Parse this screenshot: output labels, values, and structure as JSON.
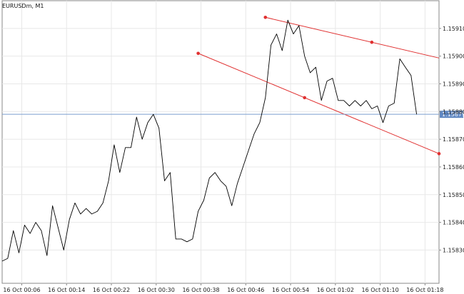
{
  "header": {
    "title": "EURUSDm, M1"
  },
  "colors": {
    "price_line": "#000000",
    "channel": "#e03030",
    "horizontal_line": "#7a9ecf",
    "price_label_bg": "#5f87c2",
    "grid": "#e8e8e8",
    "axis": "#888888"
  },
  "chart_data": {
    "type": "line",
    "title": "EURUSDm, M1",
    "grid": true,
    "y_axis_position": "right",
    "ylim": [
      1.15818,
      1.1592
    ],
    "y_ticks": [
      "1.15830",
      "1.15840",
      "1.15850",
      "1.15860",
      "1.15870",
      "1.15880",
      "1.15890",
      "1.15900",
      "1.15910"
    ],
    "x_tick_labels": [
      "16 Oct 00:06",
      "16 Oct 00:14",
      "16 Oct 00:22",
      "16 Oct 00:30",
      "16 Oct 00:38",
      "16 Oct 00:46",
      "16 Oct 00:54",
      "16 Oct 01:02",
      "16 Oct 01:10",
      "16 Oct 01:18"
    ],
    "x_tick_minutes": [
      6,
      14,
      22,
      30,
      38,
      46,
      54,
      62,
      70,
      78
    ],
    "xlim_minutes": [
      2.5,
      80.5
    ],
    "series": [
      {
        "x_minutes": [
          2.5,
          3.5,
          4.5,
          5.5,
          6.5,
          7.5,
          8.5,
          9.5,
          10.5,
          11.5,
          12.5,
          13.5,
          14.5,
          15.5,
          16.5,
          17.5,
          18.5,
          19.5,
          20.5,
          21.5,
          22.5,
          23.5,
          24.5,
          25.5,
          26.5,
          27.5,
          28.5,
          29.5,
          30.5,
          31.5,
          32.5,
          33.5,
          34.5,
          35.5,
          36.5,
          37.5,
          38.5,
          39.5,
          40.5,
          41.5,
          42.5,
          43.5,
          44.5,
          45.5,
          46.5,
          47.5,
          48.5,
          49.5,
          50.5,
          51.5,
          52.5,
          53.5,
          54.5,
          55.5,
          56.5,
          57.5,
          58.5,
          59.5,
          60.5,
          61.5,
          62.5,
          63.5,
          64.5,
          65.5,
          66.5,
          67.5,
          68.5,
          69.5,
          70.5,
          71.5,
          72.5,
          73.5,
          74.5,
          75.5,
          76.5
        ],
        "values": [
          1.15826,
          1.15827,
          1.15837,
          1.15829,
          1.15839,
          1.15836,
          1.1584,
          1.15837,
          1.15828,
          1.15846,
          1.15838,
          1.1583,
          1.15841,
          1.15847,
          1.15843,
          1.15845,
          1.15843,
          1.15844,
          1.15847,
          1.15855,
          1.15868,
          1.15858,
          1.15867,
          1.15867,
          1.15878,
          1.1587,
          1.15876,
          1.15879,
          1.15874,
          1.15855,
          1.15858,
          1.15834,
          1.15834,
          1.15833,
          1.15834,
          1.15844,
          1.15848,
          1.15856,
          1.15858,
          1.15855,
          1.15853,
          1.15846,
          1.15854,
          1.1586,
          1.15866,
          1.15872,
          1.15876,
          1.15885,
          1.15904,
          1.15908,
          1.15902,
          1.15913,
          1.15908,
          1.15911,
          1.159,
          1.15894,
          1.15896,
          1.15884,
          1.15891,
          1.15892,
          1.15884,
          1.15884,
          1.15882,
          1.15884,
          1.15882,
          1.15884,
          1.15881,
          1.15882,
          1.15876,
          1.15882,
          1.15883,
          1.15899,
          1.15896,
          1.15893,
          1.15879
        ]
      }
    ],
    "channel_lines": [
      {
        "from": {
          "x_minutes": 49.5,
          "value": 1.15914
        },
        "through": {
          "x_minutes": 68.5,
          "value": 1.15905
        }
      },
      {
        "from": {
          "x_minutes": 37.5,
          "value": 1.15901
        },
        "through": {
          "x_minutes": 56.5,
          "value": 1.15885
        }
      }
    ],
    "current_price": {
      "value": 1.15879,
      "label": "1.15879"
    }
  }
}
